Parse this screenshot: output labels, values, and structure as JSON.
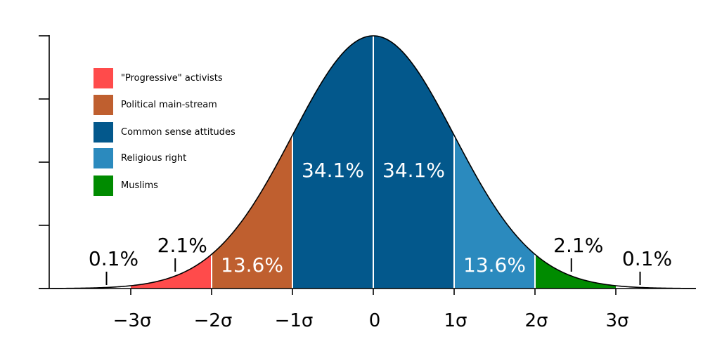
{
  "chart_data": {
    "type": "area",
    "title": "",
    "xlabel": "",
    "ylabel": "",
    "xlim": [
      -4,
      4
    ],
    "ylim": [
      0,
      0.4
    ],
    "x_ticks": [
      {
        "value": -3,
        "label": "−3σ"
      },
      {
        "value": -2,
        "label": "−2σ"
      },
      {
        "value": -1,
        "label": "−1σ"
      },
      {
        "value": 0,
        "label": "0"
      },
      {
        "value": 1,
        "label": "1σ"
      },
      {
        "value": 2,
        "label": "2σ"
      },
      {
        "value": 3,
        "label": "3σ"
      }
    ],
    "y_ticks": [
      0,
      0.1,
      0.2,
      0.3,
      0.4
    ],
    "curve": "normal distribution, mean 0, standard deviation 1",
    "series": [
      {
        "name": "\"Progressive\" activists",
        "color": "#ff4b4b",
        "from": -3,
        "to": -2
      },
      {
        "name": "Political main-stream",
        "color": "#bf5f2f",
        "from": -2,
        "to": -1
      },
      {
        "name": "Common sense attitudes",
        "color": "#03588c",
        "from": -1,
        "to": 1
      },
      {
        "name": "Religious right",
        "color": "#2b8abe",
        "from": 1,
        "to": 2
      },
      {
        "name": "Muslims",
        "color": "#008b00",
        "from": 2,
        "to": 3
      }
    ],
    "region_labels": [
      {
        "x": -1.5,
        "text": "13.6%",
        "inside": true
      },
      {
        "x": -0.5,
        "text": "34.1%",
        "inside": true
      },
      {
        "x": 0.5,
        "text": "34.1%",
        "inside": true
      },
      {
        "x": 1.5,
        "text": "13.6%",
        "inside": true
      },
      {
        "x": -2.45,
        "text": "2.1%",
        "inside": false
      },
      {
        "x": 2.45,
        "text": "2.1%",
        "inside": false
      },
      {
        "x": -3.3,
        "text": "0.1%",
        "inside": false
      },
      {
        "x": 3.3,
        "text": "0.1%",
        "inside": false
      }
    ],
    "legend_position": "top-left",
    "grid": false
  }
}
